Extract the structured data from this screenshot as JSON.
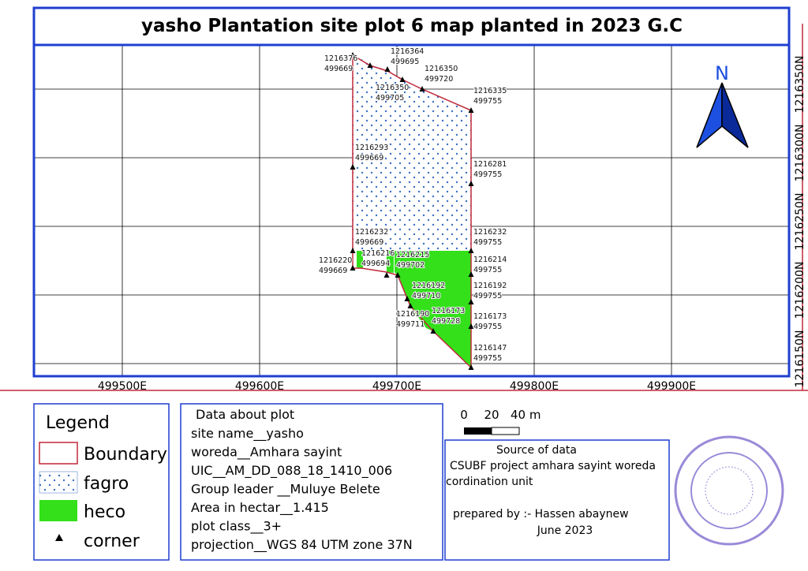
{
  "title": "yasho Plantation site plot 6 map planted in 2023 G.C",
  "map": {
    "x_labels": [
      "499500E",
      "499600E",
      "499700E",
      "499800E",
      "499900E"
    ],
    "y_labels": [
      "1216150N",
      "1216200N",
      "1216250N",
      "1216300N",
      "1216350N"
    ],
    "north": "N",
    "corners": [
      {
        "northing": "1216376",
        "easting": "499669"
      },
      {
        "northing": "1216364",
        "easting": "499695"
      },
      {
        "northing": "1216350",
        "easting": "499705"
      },
      {
        "northing": "1216350",
        "easting": "499720"
      },
      {
        "northing": "1216335",
        "easting": "499755"
      },
      {
        "northing": "1216293",
        "easting": "499669"
      },
      {
        "northing": "1216281",
        "easting": "499755"
      },
      {
        "northing": "1216232",
        "easting": "499669"
      },
      {
        "northing": "1216232",
        "easting": "499755"
      },
      {
        "northing": "1216220",
        "easting": "499669"
      },
      {
        "northing": "1216216",
        "easting": "499694"
      },
      {
        "northing": "1216215",
        "easting": "499702"
      },
      {
        "northing": "1216214",
        "easting": "499755"
      },
      {
        "northing": "1216192",
        "easting": "499710"
      },
      {
        "northing": "1216192",
        "easting": "499755"
      },
      {
        "northing": "1216190",
        "easting": "499711"
      },
      {
        "northing": "1216173",
        "easting": "499728"
      },
      {
        "northing": "1216173",
        "easting": "499755"
      },
      {
        "northing": "1216147",
        "easting": "499755"
      }
    ]
  },
  "legend": {
    "title": "Legend",
    "items": [
      "Boundary",
      "fagro",
      "heco",
      "corner"
    ]
  },
  "plot_data": {
    "title": "Data about plot",
    "lines": [
      "site name__yasho",
      "woreda__Amhara sayint",
      "UIC__AM_DD_088_18_1410_006",
      "Group leader __Muluye Belete",
      "Area in hectar__1.415",
      "plot class__3+",
      "projection__WGS 84 UTM zone 37N"
    ]
  },
  "scale_bar": {
    "labels": [
      "0",
      "20",
      "40 m"
    ]
  },
  "source": {
    "title": "Source of data",
    "lines": [
      "CSUBF project amhara sayint woreda",
      "cordination unit"
    ],
    "prepared_by": "prepared by :- Hassen abaynew",
    "date": "June 2023"
  }
}
